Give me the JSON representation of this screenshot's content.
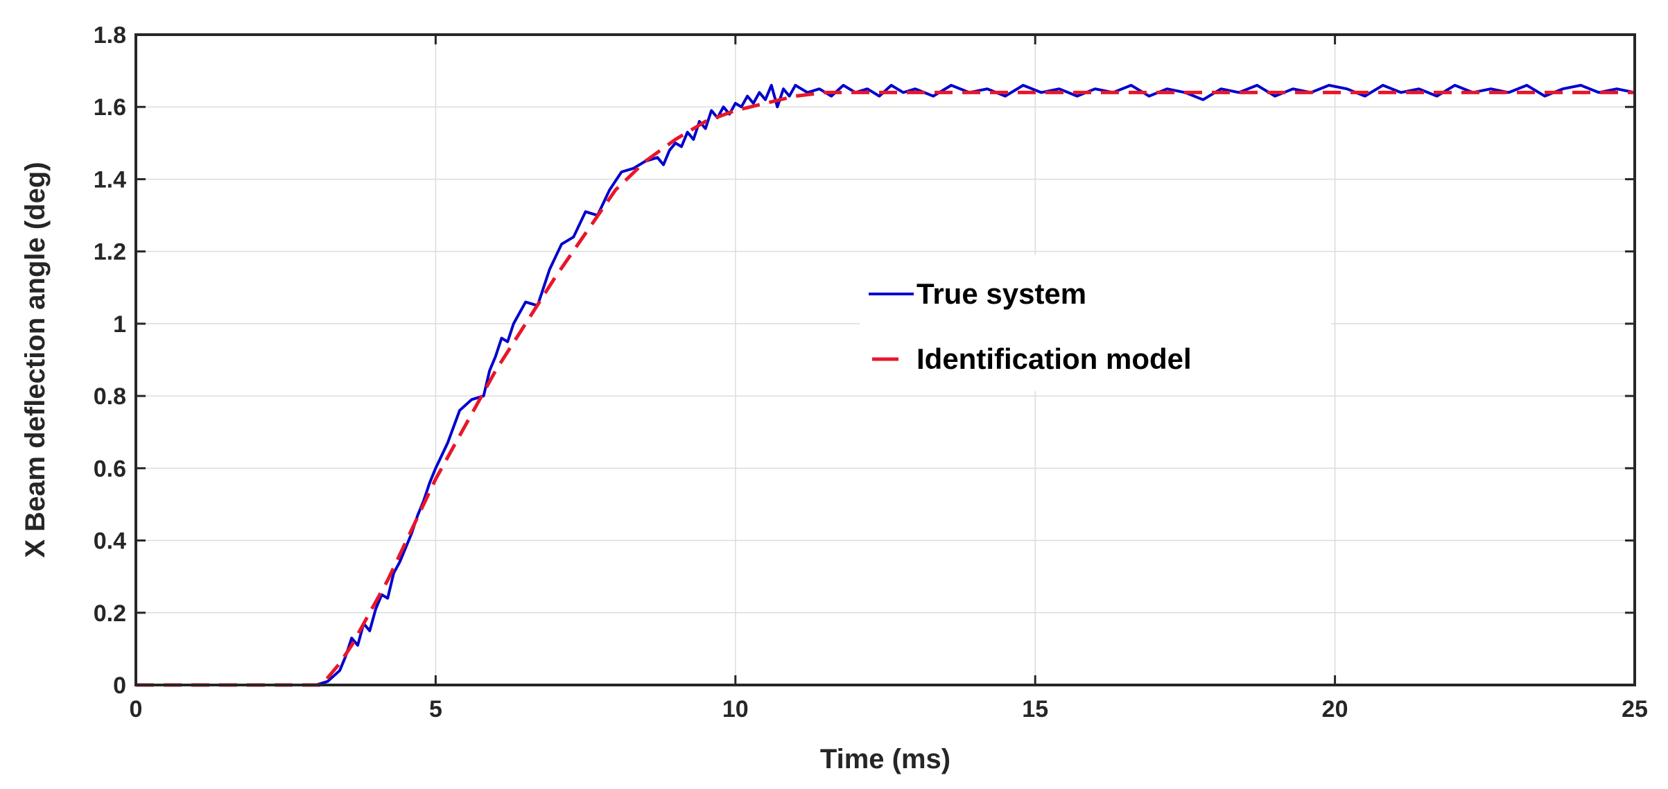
{
  "chart_data": {
    "type": "line",
    "title": "",
    "xlabel": "Time (ms)",
    "ylabel": "X Beam deflection angle (deg)",
    "xlim": [
      0,
      25
    ],
    "ylim": [
      0,
      1.8
    ],
    "xticks": [
      "0",
      "5",
      "10",
      "15",
      "20",
      "25"
    ],
    "xtick_values": [
      0,
      5,
      10,
      15,
      20,
      25
    ],
    "yticks": [
      "0",
      "0.2",
      "0.4",
      "0.6",
      "0.8",
      "1",
      "1.2",
      "1.4",
      "1.6",
      "1.8"
    ],
    "ytick_values": [
      0,
      0.2,
      0.4,
      0.6,
      0.8,
      1.0,
      1.2,
      1.4,
      1.6,
      1.8
    ],
    "grid": true,
    "legend_position": "center-right",
    "series": [
      {
        "name": "True system",
        "color": "#0000cd",
        "style": "solid",
        "x": [
          0,
          1,
          2,
          3,
          3.2,
          3.4,
          3.5,
          3.6,
          3.7,
          3.8,
          3.9,
          4.0,
          4.1,
          4.2,
          4.3,
          4.4,
          4.5,
          4.6,
          4.7,
          4.8,
          4.9,
          5.0,
          5.2,
          5.4,
          5.6,
          5.8,
          5.9,
          6.0,
          6.1,
          6.2,
          6.3,
          6.5,
          6.7,
          6.9,
          7.1,
          7.3,
          7.5,
          7.7,
          7.9,
          8.1,
          8.3,
          8.5,
          8.7,
          8.8,
          8.9,
          9.0,
          9.1,
          9.2,
          9.3,
          9.4,
          9.5,
          9.6,
          9.7,
          9.8,
          9.9,
          10.0,
          10.1,
          10.2,
          10.3,
          10.4,
          10.5,
          10.6,
          10.7,
          10.8,
          10.9,
          11.0,
          11.2,
          11.4,
          11.6,
          11.8,
          12.0,
          12.2,
          12.4,
          12.6,
          12.8,
          13.0,
          13.3,
          13.6,
          13.9,
          14.2,
          14.5,
          14.8,
          15.1,
          15.4,
          15.7,
          16.0,
          16.3,
          16.6,
          16.9,
          17.2,
          17.5,
          17.8,
          18.1,
          18.4,
          18.7,
          19.0,
          19.3,
          19.6,
          19.9,
          20.2,
          20.5,
          20.8,
          21.1,
          21.4,
          21.7,
          22.0,
          22.3,
          22.6,
          22.9,
          23.2,
          23.5,
          23.8,
          24.1,
          24.4,
          24.7,
          25.0
        ],
        "y": [
          0,
          0,
          0,
          0,
          0.01,
          0.04,
          0.08,
          0.13,
          0.11,
          0.17,
          0.15,
          0.21,
          0.25,
          0.24,
          0.31,
          0.34,
          0.38,
          0.42,
          0.47,
          0.51,
          0.56,
          0.6,
          0.67,
          0.76,
          0.79,
          0.8,
          0.87,
          0.91,
          0.96,
          0.95,
          1.0,
          1.06,
          1.05,
          1.15,
          1.22,
          1.24,
          1.31,
          1.3,
          1.37,
          1.42,
          1.43,
          1.45,
          1.46,
          1.44,
          1.48,
          1.5,
          1.49,
          1.53,
          1.51,
          1.56,
          1.54,
          1.59,
          1.57,
          1.6,
          1.58,
          1.61,
          1.6,
          1.63,
          1.61,
          1.64,
          1.62,
          1.66,
          1.6,
          1.65,
          1.63,
          1.66,
          1.64,
          1.65,
          1.63,
          1.66,
          1.64,
          1.65,
          1.63,
          1.66,
          1.64,
          1.65,
          1.63,
          1.66,
          1.64,
          1.65,
          1.63,
          1.66,
          1.64,
          1.65,
          1.63,
          1.65,
          1.64,
          1.66,
          1.63,
          1.65,
          1.64,
          1.62,
          1.65,
          1.64,
          1.66,
          1.63,
          1.65,
          1.64,
          1.66,
          1.65,
          1.63,
          1.66,
          1.64,
          1.65,
          1.63,
          1.66,
          1.64,
          1.65,
          1.64,
          1.66,
          1.63,
          1.65,
          1.66,
          1.64,
          1.65,
          1.64
        ]
      },
      {
        "name": "Identification model",
        "color": "#e8162a",
        "style": "dashed",
        "x": [
          0,
          1,
          2,
          3,
          3.1,
          3.2,
          3.4,
          3.6,
          3.8,
          4.0,
          4.2,
          4.4,
          4.6,
          4.8,
          5.0,
          5.3,
          5.6,
          6.0,
          6.5,
          7.0,
          7.5,
          8.0,
          8.5,
          9.0,
          9.5,
          10.0,
          10.5,
          11.0,
          11.5,
          12.0,
          12.5,
          13.0,
          14.0,
          15.0,
          16.0,
          17.0,
          18.0,
          19.0,
          20.0,
          21.0,
          22.0,
          23.0,
          24.0,
          25.0
        ],
        "y": [
          0,
          0,
          0,
          0,
          0.0,
          0.02,
          0.06,
          0.11,
          0.17,
          0.23,
          0.29,
          0.36,
          0.43,
          0.5,
          0.57,
          0.66,
          0.75,
          0.87,
          1.0,
          1.13,
          1.25,
          1.37,
          1.45,
          1.51,
          1.56,
          1.59,
          1.61,
          1.63,
          1.64,
          1.64,
          1.64,
          1.64,
          1.64,
          1.64,
          1.64,
          1.64,
          1.64,
          1.64,
          1.64,
          1.64,
          1.64,
          1.64,
          1.64,
          1.64
        ]
      }
    ]
  }
}
